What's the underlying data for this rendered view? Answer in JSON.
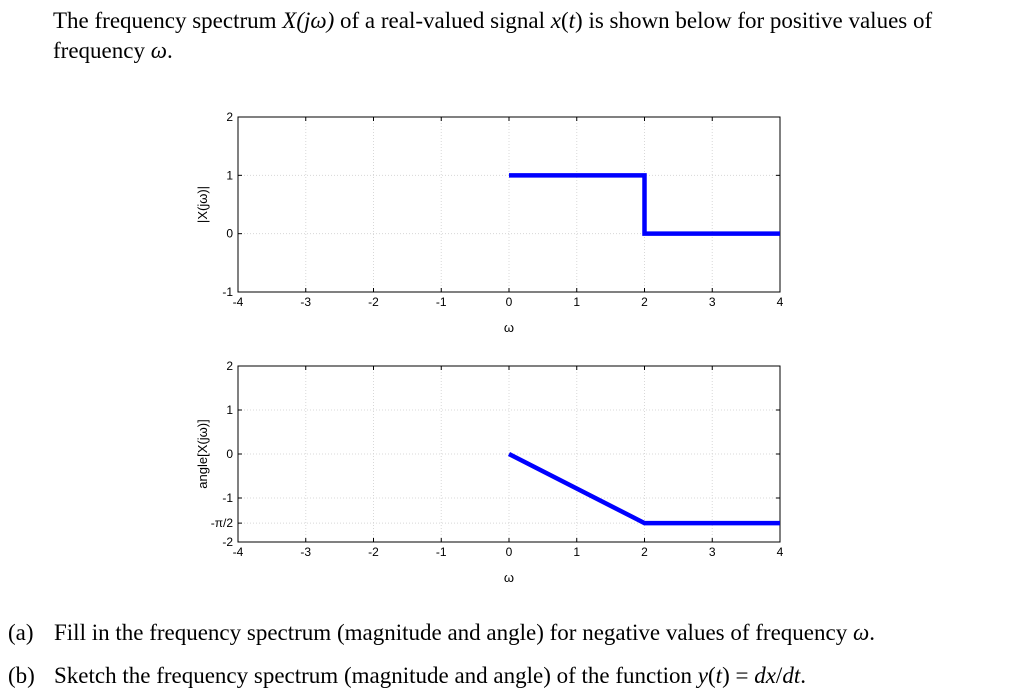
{
  "intro": {
    "t1": "The frequency spectrum ",
    "t2": "X(jω)",
    "t3": " of a real-valued signal ",
    "t4": "x",
    "t5": "(",
    "t6": "t",
    "t7": ") is shown below for positive values of frequency ",
    "t8": "ω",
    "t9": "."
  },
  "questions": {
    "a_label": "(a)",
    "a_text1": "Fill in the frequency spectrum (magnitude and angle) for negative values of frequency ",
    "a_text2": "ω",
    "a_text3": ".",
    "b_label": "(b)",
    "b_text1": "Sketch the frequency spectrum (magnitude and angle) of the function ",
    "b_text2": "y",
    "b_text3": "(",
    "b_text4": "t",
    "b_text5": ") = ",
    "b_text6": "dx",
    "b_text7": "/",
    "b_text8": "dt",
    "b_text9": "."
  },
  "chart_data": [
    {
      "type": "line",
      "xlabel": "ω",
      "ylabel": "|X(jω)|",
      "xlim": [
        -4,
        4
      ],
      "ylim": [
        -1,
        2
      ],
      "xticks": [
        -4,
        -3,
        -2,
        -1,
        0,
        1,
        2,
        3,
        4
      ],
      "yticks": [
        {
          "v": -1,
          "label": "-1"
        },
        {
          "v": 0,
          "label": "0"
        },
        {
          "v": 1,
          "label": "1"
        },
        {
          "v": 2,
          "label": "2"
        }
      ],
      "grid": true,
      "line_color": "#0000ff",
      "points": [
        [
          0,
          1
        ],
        [
          2,
          1
        ],
        [
          2,
          0
        ],
        [
          4,
          0
        ]
      ]
    },
    {
      "type": "line",
      "xlabel": "ω",
      "ylabel": "angle[X(jω)]",
      "xlim": [
        -4,
        4
      ],
      "ylim": [
        -2,
        2
      ],
      "xticks": [
        -4,
        -3,
        -2,
        -1,
        0,
        1,
        2,
        3,
        4
      ],
      "yticks": [
        {
          "v": -2,
          "label": "-2"
        },
        {
          "v": -1.5708,
          "label": "-π/2"
        },
        {
          "v": -1,
          "label": "-1"
        },
        {
          "v": 0,
          "label": "0"
        },
        {
          "v": 1,
          "label": "1"
        },
        {
          "v": 2,
          "label": "2"
        }
      ],
      "grid": true,
      "line_color": "#0000ff",
      "points": [
        [
          0,
          0
        ],
        [
          2,
          -1.5708
        ],
        [
          4,
          -1.5708
        ]
      ]
    }
  ]
}
